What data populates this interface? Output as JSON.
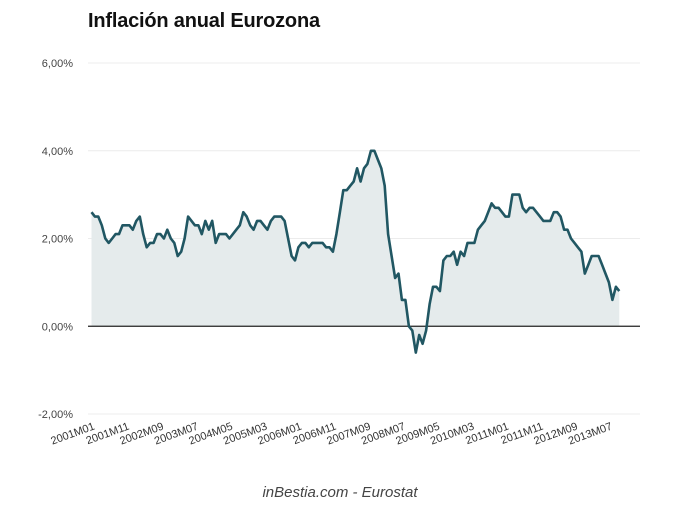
{
  "chart_data": {
    "type": "area",
    "title": "Inflación anual Eurozona",
    "source": "inBestia.com - Eurostat",
    "ylim": [
      -2,
      6
    ],
    "y_ticks": [
      {
        "value": 6,
        "label": "6,00%"
      },
      {
        "value": 4,
        "label": "4,00%"
      },
      {
        "value": 2,
        "label": "2,00%"
      },
      {
        "value": 0,
        "label": "0,00%"
      },
      {
        "value": -2,
        "label": "-2,00%"
      }
    ],
    "x_ticks": [
      {
        "month": 0,
        "label": "2001M01"
      },
      {
        "month": 10,
        "label": "2001M11"
      },
      {
        "month": 20,
        "label": "2002M09"
      },
      {
        "month": 30,
        "label": "2003M07"
      },
      {
        "month": 40,
        "label": "2004M05"
      },
      {
        "month": 50,
        "label": "2005M03"
      },
      {
        "month": 60,
        "label": "2006M01"
      },
      {
        "month": 70,
        "label": "2006M11"
      },
      {
        "month": 80,
        "label": "2007M09"
      },
      {
        "month": 90,
        "label": "2008M07"
      },
      {
        "month": 100,
        "label": "2009M05"
      },
      {
        "month": 110,
        "label": "2010M03"
      },
      {
        "month": 120,
        "label": "2011M01"
      },
      {
        "month": 130,
        "label": "2011M11"
      },
      {
        "month": 140,
        "label": "2012M09"
      },
      {
        "month": 150,
        "label": "2013M07"
      }
    ],
    "x_range": [
      -1,
      159
    ],
    "grid": true,
    "colors": {
      "line": "#215763",
      "area": "#e5ebec",
      "grid": "#ececec",
      "zero_line": "#222222"
    },
    "series": [
      {
        "name": "",
        "values": [
          2.6,
          2.5,
          2.5,
          2.3,
          2.0,
          1.9,
          2.0,
          2.1,
          2.1,
          2.3,
          2.3,
          2.3,
          2.2,
          2.4,
          2.5,
          2.1,
          1.8,
          1.9,
          1.9,
          2.1,
          2.1,
          2.0,
          2.2,
          2.0,
          1.9,
          1.6,
          1.7,
          2.0,
          2.5,
          2.4,
          2.3,
          2.3,
          2.1,
          2.4,
          2.2,
          2.4,
          1.9,
          2.1,
          2.1,
          2.1,
          2.0,
          2.1,
          2.2,
          2.3,
          2.6,
          2.5,
          2.3,
          2.2,
          2.4,
          2.4,
          2.3,
          2.2,
          2.4,
          2.5,
          2.5,
          2.5,
          2.4,
          2.0,
          1.6,
          1.5,
          1.8,
          1.9,
          1.9,
          1.8,
          1.9,
          1.9,
          1.9,
          1.9,
          1.8,
          1.8,
          1.7,
          2.1,
          2.6,
          3.1,
          3.1,
          3.2,
          3.3,
          3.6,
          3.3,
          3.6,
          3.7,
          4.0,
          4.0,
          3.8,
          3.6,
          3.2,
          2.1,
          1.6,
          1.1,
          1.2,
          0.6,
          0.6,
          0.0,
          -0.1,
          -0.6,
          -0.2,
          -0.4,
          -0.1,
          0.5,
          0.9,
          0.9,
          0.8,
          1.5,
          1.6,
          1.6,
          1.7,
          1.4,
          1.7,
          1.6,
          1.9,
          1.9,
          1.9,
          2.2,
          2.3,
          2.4,
          2.6,
          2.8,
          2.7,
          2.7,
          2.6,
          2.5,
          2.5,
          3.0,
          3.0,
          3.0,
          2.7,
          2.6,
          2.7,
          2.7,
          2.6,
          2.5,
          2.4,
          2.4,
          2.4,
          2.6,
          2.6,
          2.5,
          2.2,
          2.2,
          2.0,
          1.9,
          1.8,
          1.7,
          1.2,
          1.4,
          1.6,
          1.6,
          1.6,
          1.4,
          1.2,
          1.0,
          0.6,
          0.9,
          0.8
        ]
      }
    ]
  }
}
